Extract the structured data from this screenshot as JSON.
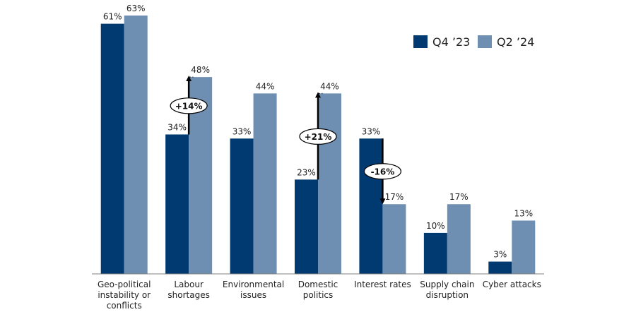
{
  "chart_data": {
    "type": "bar",
    "categories": [
      [
        "Geo-political",
        "instability or",
        "conflicts"
      ],
      [
        "Labour",
        "shortages"
      ],
      [
        "Environmental",
        "issues"
      ],
      [
        "Domestic",
        "politics"
      ],
      [
        "Interest rates"
      ],
      [
        "Supply chain",
        "disruption"
      ],
      [
        "Cyber attacks"
      ]
    ],
    "series": [
      {
        "name": "Q4 ’23",
        "color": "#003A70",
        "values": [
          61,
          34,
          33,
          23,
          33,
          10,
          3
        ]
      },
      {
        "name": "Q2 ’24",
        "color": "#6E8FB1",
        "values": [
          63,
          48,
          44,
          44,
          17,
          17,
          13
        ]
      }
    ],
    "value_suffix": "%",
    "ylim": [
      0,
      63
    ],
    "legend_position": "top-right",
    "grid": false,
    "annotations": [
      {
        "category_index": 1,
        "text": "+14%",
        "direction": "up"
      },
      {
        "category_index": 3,
        "text": "+21%",
        "direction": "up"
      },
      {
        "category_index": 4,
        "text": "-16%",
        "direction": "down"
      }
    ]
  }
}
